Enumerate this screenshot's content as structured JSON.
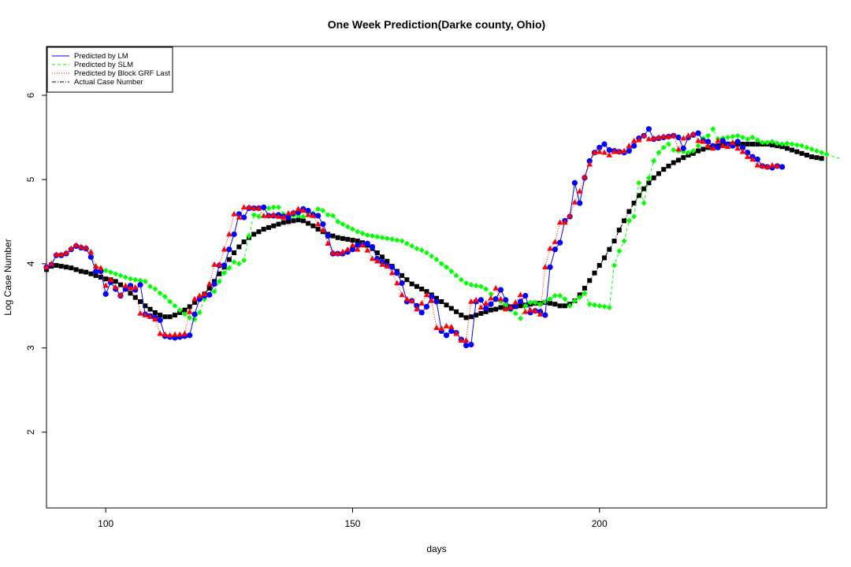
{
  "chart_data": {
    "type": "line",
    "title": "One Week Prediction(Darke county, Ohio)",
    "xlabel": "days",
    "ylabel": "Log Case Number",
    "xlim": [
      88,
      246
    ],
    "ylim": [
      1.1,
      6.58
    ],
    "x_ticks": [
      100,
      150,
      200
    ],
    "y_ticks": [
      2,
      3,
      4,
      5,
      6
    ],
    "grid": false,
    "legend_position": "top-left",
    "legend": [
      {
        "label": "Predicted by LM",
        "color": "#0000ff",
        "line": "solid"
      },
      {
        "label": "Predicted by SLM",
        "color": "#00ff00",
        "line": "dashed"
      },
      {
        "label": "Predicted by Block GRF Last",
        "color": "#ff0000",
        "line": "dotted"
      },
      {
        "label": "Actual Case Number",
        "color": "#000000",
        "line": "dotdash"
      }
    ],
    "x_start": 88,
    "series": [
      {
        "name": "Actual Case Number",
        "color": "#000000",
        "marker": "square",
        "values": [
          3.93,
          3.97,
          3.98,
          3.97,
          3.96,
          3.95,
          3.93,
          3.91,
          3.9,
          3.88,
          3.86,
          3.84,
          3.82,
          3.81,
          3.79,
          3.75,
          3.7,
          3.65,
          3.6,
          3.55,
          3.5,
          3.46,
          3.42,
          3.39,
          3.37,
          3.37,
          3.39,
          3.42,
          3.45,
          3.49,
          3.54,
          3.59,
          3.64,
          3.71,
          3.79,
          3.88,
          3.96,
          4.05,
          4.13,
          4.2,
          4.26,
          4.31,
          4.35,
          4.38,
          4.41,
          4.43,
          4.45,
          4.47,
          4.49,
          4.5,
          4.51,
          4.52,
          4.51,
          4.48,
          4.45,
          4.41,
          4.38,
          4.35,
          4.33,
          4.31,
          4.3,
          4.29,
          4.28,
          4.27,
          4.25,
          4.22,
          4.18,
          4.13,
          4.08,
          4.03,
          3.97,
          3.91,
          3.86,
          3.81,
          3.76,
          3.73,
          3.7,
          3.67,
          3.63,
          3.59,
          3.55,
          3.51,
          3.47,
          3.43,
          3.39,
          3.36,
          3.37,
          3.39,
          3.41,
          3.43,
          3.45,
          3.46,
          3.48,
          3.48,
          3.49,
          3.49,
          3.5,
          3.51,
          3.52,
          3.53,
          3.53,
          3.54,
          3.53,
          3.52,
          3.5,
          3.5,
          3.52,
          3.56,
          3.63,
          3.71,
          3.8,
          3.89,
          3.98,
          4.07,
          4.17,
          4.27,
          4.4,
          4.51,
          4.62,
          4.72,
          4.81,
          4.89,
          4.96,
          5.02,
          5.07,
          5.12,
          5.16,
          5.2,
          5.23,
          5.26,
          5.29,
          5.31,
          5.34,
          5.36,
          5.38,
          5.39,
          5.4,
          5.41,
          5.42,
          5.42,
          5.42,
          5.42,
          5.42,
          5.42,
          5.42,
          5.42,
          5.42,
          5.41,
          5.4,
          5.39,
          5.37,
          5.35,
          5.33,
          5.31,
          5.29,
          5.27,
          5.26,
          5.25
        ]
      },
      {
        "name": "Predicted by SLM",
        "color": "#00ff00",
        "marker": "diamond",
        "values": [
          3.96,
          3.99,
          4.1,
          4.1,
          4.12,
          4.17,
          4.21,
          4.19,
          4.18,
          4.08,
          3.96,
          3.93,
          3.92,
          3.9,
          3.88,
          3.86,
          3.84,
          3.82,
          3.81,
          3.8,
          3.79,
          3.73,
          3.7,
          3.65,
          3.61,
          3.55,
          3.5,
          3.45,
          3.4,
          3.36,
          3.34,
          3.42,
          3.58,
          3.63,
          3.67,
          3.79,
          3.89,
          3.95,
          4.02,
          4.0,
          4.04,
          4.33,
          4.58,
          4.56,
          4.66,
          4.66,
          4.67,
          4.67,
          4.59,
          4.57,
          4.57,
          4.57,
          4.56,
          4.61,
          4.6,
          4.65,
          4.63,
          4.58,
          4.57,
          4.5,
          4.47,
          4.44,
          4.41,
          4.38,
          4.36,
          4.34,
          4.33,
          4.32,
          4.31,
          4.3,
          4.29,
          4.28,
          4.27,
          4.24,
          4.21,
          4.18,
          4.16,
          4.13,
          4.09,
          4.05,
          4.0,
          3.96,
          3.91,
          3.86,
          3.81,
          3.77,
          3.75,
          3.74,
          3.73,
          3.7,
          3.64,
          3.59,
          3.55,
          3.51,
          3.45,
          3.41,
          3.35,
          3.5,
          3.54,
          3.54,
          3.52,
          3.55,
          3.58,
          3.62,
          3.62,
          3.58,
          3.5,
          3.56,
          3.6,
          3.65,
          3.52,
          3.51,
          3.5,
          3.49,
          3.48,
          3.98,
          4.15,
          4.27,
          4.51,
          4.56,
          4.96,
          4.72,
          5.02,
          5.22,
          5.32,
          5.38,
          5.42,
          5.35,
          5.34,
          5.33,
          5.32,
          5.34,
          5.4,
          5.49,
          5.52,
          5.6,
          5.48,
          5.49,
          5.5,
          5.51,
          5.52,
          5.5,
          5.48,
          5.5,
          5.47,
          5.44,
          5.44,
          5.45,
          5.43,
          5.42,
          5.43,
          5.42,
          5.41,
          5.4,
          5.38,
          5.36,
          5.34,
          5.32,
          5.3,
          5.28,
          5.26,
          5.25
        ]
      },
      {
        "name": "Predicted by LM",
        "color": "#0000ff",
        "marker": "circle",
        "values": [
          3.96,
          3.99,
          4.1,
          4.1,
          4.12,
          4.17,
          4.21,
          4.19,
          4.18,
          4.08,
          3.91,
          3.91,
          3.64,
          3.78,
          3.7,
          3.62,
          3.7,
          3.74,
          3.69,
          3.75,
          3.4,
          3.38,
          3.36,
          3.33,
          3.14,
          3.13,
          3.12,
          3.13,
          3.14,
          3.15,
          3.4,
          3.58,
          3.62,
          3.63,
          3.76,
          3.98,
          3.98,
          4.17,
          4.35,
          4.59,
          4.55,
          4.66,
          4.66,
          4.66,
          4.67,
          4.57,
          4.57,
          4.58,
          4.56,
          4.55,
          4.6,
          4.61,
          4.65,
          4.63,
          4.58,
          4.57,
          4.47,
          4.33,
          4.12,
          4.12,
          4.12,
          4.14,
          4.17,
          4.22,
          4.23,
          4.24,
          4.2,
          4.06,
          4.02,
          3.98,
          3.96,
          3.89,
          3.77,
          3.55,
          3.56,
          3.5,
          3.42,
          3.49,
          3.61,
          3.55,
          3.2,
          3.15,
          3.2,
          3.18,
          3.1,
          3.03,
          3.04,
          3.55,
          3.57,
          3.47,
          3.52,
          3.58,
          3.69,
          3.57,
          3.47,
          3.5,
          3.55,
          3.62,
          3.42,
          3.44,
          3.43,
          3.39,
          3.96,
          4.17,
          4.25,
          4.51,
          4.56,
          4.96,
          4.72,
          5.02,
          5.22,
          5.32,
          5.38,
          5.42,
          5.35,
          5.34,
          5.33,
          5.32,
          5.34,
          5.4,
          5.49,
          5.52,
          5.6,
          5.48,
          5.49,
          5.5,
          5.51,
          5.52,
          5.5,
          5.37,
          5.5,
          5.53,
          5.55,
          5.46,
          5.45,
          5.4,
          5.38,
          5.46,
          5.42,
          5.4,
          5.45,
          5.38,
          5.32,
          5.27,
          5.24,
          5.16,
          5.15,
          5.14,
          5.16,
          5.15
        ]
      },
      {
        "name": "Predicted by Block GRF Last",
        "color": "#ff0000",
        "marker": "triangle",
        "values": [
          3.96,
          4.0,
          4.11,
          4.11,
          4.13,
          4.18,
          4.22,
          4.2,
          4.19,
          4.14,
          3.97,
          3.95,
          3.74,
          3.81,
          3.72,
          3.63,
          3.74,
          3.71,
          3.72,
          3.41,
          3.39,
          3.37,
          3.34,
          3.17,
          3.16,
          3.15,
          3.16,
          3.16,
          3.17,
          3.43,
          3.58,
          3.62,
          3.64,
          3.76,
          3.99,
          3.99,
          4.17,
          4.35,
          4.59,
          4.55,
          4.67,
          4.67,
          4.66,
          4.66,
          4.57,
          4.57,
          4.58,
          4.56,
          4.55,
          4.6,
          4.61,
          4.65,
          4.63,
          4.58,
          4.57,
          4.47,
          4.4,
          4.24,
          4.13,
          4.12,
          4.14,
          4.17,
          4.22,
          4.17,
          4.22,
          4.16,
          4.06,
          4.03,
          3.99,
          3.97,
          3.89,
          3.77,
          3.63,
          3.58,
          3.56,
          3.46,
          3.53,
          3.63,
          3.56,
          3.24,
          3.23,
          3.26,
          3.25,
          3.17,
          3.09,
          3.09,
          3.55,
          3.57,
          3.48,
          3.53,
          3.59,
          3.71,
          3.58,
          3.46,
          3.48,
          3.54,
          3.63,
          3.43,
          3.45,
          3.44,
          3.4,
          3.96,
          4.18,
          4.26,
          4.49,
          4.49,
          4.57,
          4.73,
          4.86,
          5.03,
          5.18,
          5.32,
          5.33,
          5.32,
          5.29,
          5.33,
          5.33,
          5.34,
          5.4,
          5.46,
          5.47,
          5.52,
          5.48,
          5.49,
          5.5,
          5.51,
          5.51,
          5.52,
          5.36,
          5.49,
          5.52,
          5.54,
          5.46,
          5.45,
          5.4,
          5.37,
          5.46,
          5.4,
          5.39,
          5.44,
          5.37,
          5.33,
          5.27,
          5.24,
          5.17,
          5.16,
          5.15,
          5.17,
          5.16
        ]
      }
    ]
  }
}
